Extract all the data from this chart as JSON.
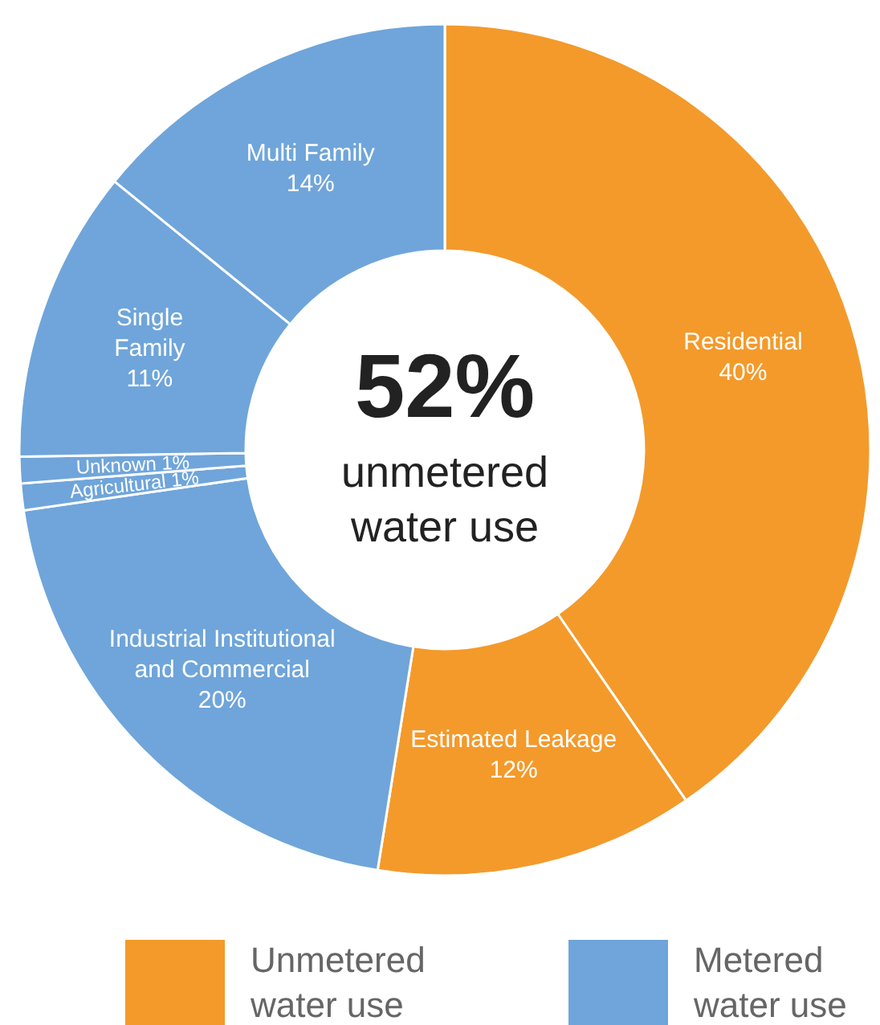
{
  "chart_data": {
    "type": "donut",
    "categories": [
      "Residential",
      "Estimated Leakage",
      "Industrial Institutional and Commercial",
      "Agricultural",
      "Unknown",
      "Single Family",
      "Multi Family"
    ],
    "values": [
      40,
      12,
      20,
      1,
      1,
      11,
      14
    ],
    "colors": [
      "#f39a2b",
      "#f39a2b",
      "#6fa5da",
      "#6fa5da",
      "#6fa5da",
      "#6fa5da",
      "#6fa5da"
    ],
    "value_labels": [
      "40%",
      "12%",
      "20%",
      "1%",
      "1%",
      "11%",
      "14%"
    ],
    "annotations": [
      "52%",
      "unmetered water use",
      "Unmetered water use",
      "Metered water use"
    ]
  }
}
